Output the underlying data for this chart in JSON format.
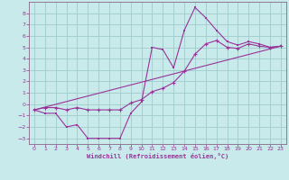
{
  "xlabel": "Windchill (Refroidissement éolien,°C)",
  "bg_color": "#c8eaea",
  "grid_color": "#a0cccc",
  "line_color": "#993399",
  "spine_color": "#886688",
  "xlim": [
    -0.5,
    23.5
  ],
  "ylim": [
    -3.5,
    9.0
  ],
  "yticks": [
    -3,
    -2,
    -1,
    0,
    1,
    2,
    3,
    4,
    5,
    6,
    7,
    8
  ],
  "xticks": [
    0,
    1,
    2,
    3,
    4,
    5,
    6,
    7,
    8,
    9,
    10,
    11,
    12,
    13,
    14,
    15,
    16,
    17,
    18,
    19,
    20,
    21,
    22,
    23
  ],
  "line1_x": [
    0,
    1,
    2,
    3,
    4,
    5,
    6,
    7,
    8,
    9,
    10,
    11,
    12,
    13,
    14,
    15,
    16,
    17,
    18,
    19,
    20,
    21,
    22,
    23
  ],
  "line1_y": [
    -0.5,
    -0.8,
    -0.8,
    -2.0,
    -1.8,
    -3.0,
    -3.0,
    -3.0,
    -3.0,
    -0.8,
    0.2,
    5.0,
    4.8,
    3.2,
    6.5,
    8.5,
    7.6,
    6.5,
    5.5,
    5.2,
    5.5,
    5.3,
    5.0,
    5.1
  ],
  "line2_x": [
    0,
    1,
    2,
    3,
    4,
    5,
    6,
    7,
    8,
    9,
    10,
    11,
    12,
    13,
    14,
    15,
    16,
    17,
    18,
    19,
    20,
    21,
    22,
    23
  ],
  "line2_y": [
    -0.5,
    -0.3,
    -0.3,
    -0.5,
    -0.3,
    -0.5,
    -0.5,
    -0.5,
    -0.5,
    0.1,
    0.4,
    1.1,
    1.4,
    1.9,
    2.9,
    4.4,
    5.3,
    5.6,
    5.0,
    4.9,
    5.3,
    5.1,
    5.0,
    5.1
  ],
  "line3_x": [
    0,
    23
  ],
  "line3_y": [
    -0.5,
    5.1
  ]
}
